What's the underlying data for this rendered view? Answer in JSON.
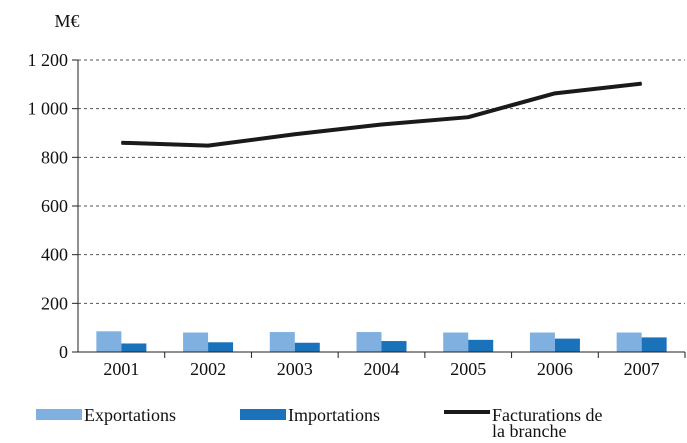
{
  "chart_data": {
    "type": "bar",
    "unit": "M€",
    "categories": [
      "2001",
      "2002",
      "2003",
      "2004",
      "2005",
      "2006",
      "2007"
    ],
    "ylim": [
      0,
      1200
    ],
    "yticks": [
      {
        "value": 0,
        "label": "0"
      },
      {
        "value": 200,
        "label": "200"
      },
      {
        "value": 400,
        "label": "400"
      },
      {
        "value": 600,
        "label": "600"
      },
      {
        "value": 800,
        "label": "800"
      },
      {
        "value": 1000,
        "label": "1 000"
      },
      {
        "value": 1200,
        "label": "1 200"
      }
    ],
    "grid": true,
    "legend_position": "bottom",
    "series": [
      {
        "name": "Exportations",
        "kind": "bar",
        "color": "#7fb0e0",
        "values": [
          85,
          80,
          82,
          82,
          80,
          80,
          80
        ]
      },
      {
        "name": "Importations",
        "kind": "bar",
        "color": "#1a72bb",
        "values": [
          35,
          40,
          38,
          45,
          50,
          55,
          60
        ]
      },
      {
        "name": "Facturations de\nla branche",
        "kind": "line",
        "color": "#1a1a1a",
        "values": [
          860,
          848,
          895,
          935,
          965,
          1063,
          1103
        ]
      }
    ]
  }
}
